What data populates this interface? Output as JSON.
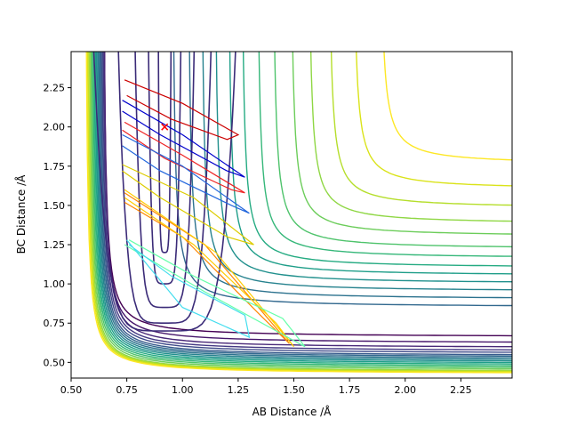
{
  "chart_data": {
    "type": "contour",
    "title": "",
    "xlabel": "AB Distance /Å",
    "ylabel": "BC Distance /Å",
    "xlim": [
      0.5,
      2.48
    ],
    "ylim": [
      0.4,
      2.48
    ],
    "xticks": [
      0.5,
      0.75,
      1.0,
      1.25,
      1.5,
      1.75,
      2.0,
      2.25
    ],
    "xtick_labels": [
      "0.50",
      "0.75",
      "1.00",
      "1.25",
      "1.50",
      "1.75",
      "2.00",
      "2.25"
    ],
    "yticks": [
      0.5,
      0.75,
      1.0,
      1.25,
      1.5,
      1.75,
      2.0,
      2.25
    ],
    "ytick_labels": [
      "0.50",
      "0.75",
      "1.00",
      "1.25",
      "1.50",
      "1.75",
      "2.00",
      "2.25"
    ],
    "grid": false,
    "legend": "none",
    "colormap": "viridis",
    "contour_levels": [
      {
        "x0": 0.64,
        "y0": 0.66,
        "color": "#440154"
      },
      {
        "x0": 0.64,
        "y0": 0.62,
        "color": "#46166b"
      },
      {
        "x0": 0.64,
        "y0": 0.59,
        "color": "#482878"
      },
      {
        "x0": 0.635,
        "y0": 0.57,
        "color": "#443983"
      },
      {
        "x0": 0.63,
        "y0": 0.555,
        "color": "#3e4a89"
      },
      {
        "x0": 0.625,
        "y0": 0.54,
        "color": "#375a8c"
      },
      {
        "x0": 0.62,
        "y0": 0.53,
        "color": "#31688e"
      },
      {
        "x0": 0.615,
        "y0": 0.52,
        "color": "#2c728e"
      },
      {
        "x0": 0.61,
        "y0": 0.51,
        "color": "#26828e"
      },
      {
        "x0": 0.605,
        "y0": 0.5,
        "color": "#21908d"
      },
      {
        "x0": 0.6,
        "y0": 0.49,
        "color": "#1f9e89"
      },
      {
        "x0": 0.595,
        "y0": 0.48,
        "color": "#25ab82"
      },
      {
        "x0": 0.59,
        "y0": 0.47,
        "color": "#35b779"
      },
      {
        "x0": 0.585,
        "y0": 0.46,
        "color": "#4ec36b"
      },
      {
        "x0": 0.58,
        "y0": 0.45,
        "color": "#6ccd5a"
      },
      {
        "x0": 0.575,
        "y0": 0.44,
        "color": "#8fd744"
      },
      {
        "x0": 0.57,
        "y0": 0.435,
        "color": "#b5de2b"
      },
      {
        "x0": 0.565,
        "y0": 0.43,
        "color": "#dae319"
      },
      {
        "x0": 0.56,
        "y0": 0.425,
        "color": "#fde725"
      }
    ],
    "upper_right_contours": [
      {
        "x0": 0.95,
        "y0": 0.85,
        "color": "#31688e"
      },
      {
        "x0": 1.02,
        "y0": 0.9,
        "color": "#2c728e"
      },
      {
        "x0": 1.08,
        "y0": 0.95,
        "color": "#26828e"
      },
      {
        "x0": 1.14,
        "y0": 1.0,
        "color": "#21908d"
      },
      {
        "x0": 1.2,
        "y0": 1.05,
        "color": "#1f9e89"
      },
      {
        "x0": 1.26,
        "y0": 1.1,
        "color": "#25ab82"
      },
      {
        "x0": 1.33,
        "y0": 1.16,
        "color": "#35b779"
      },
      {
        "x0": 1.4,
        "y0": 1.22,
        "color": "#4ec36b"
      },
      {
        "x0": 1.48,
        "y0": 1.3,
        "color": "#6ccd5a"
      },
      {
        "x0": 1.56,
        "y0": 1.38,
        "color": "#8fd744"
      },
      {
        "x0": 1.65,
        "y0": 1.48,
        "color": "#b5de2b"
      },
      {
        "x0": 1.76,
        "y0": 1.6,
        "color": "#dae319"
      },
      {
        "x0": 1.88,
        "y0": 1.76,
        "color": "#fde725"
      }
    ],
    "reactant_well": {
      "x_center": 0.92,
      "color": "#440154"
    },
    "start_point": {
      "x": 0.92,
      "y": 2.0,
      "marker": "x",
      "color": "#ff0000"
    },
    "trajectories": [
      {
        "color": "#cc0000",
        "points": [
          [
            0.74,
            2.3
          ],
          [
            1.0,
            2.15
          ],
          [
            1.25,
            1.95
          ],
          [
            1.2,
            1.92
          ],
          [
            0.95,
            2.05
          ],
          [
            0.75,
            2.2
          ]
        ]
      },
      {
        "color": "#ee2222",
        "points": [
          [
            0.74,
            2.03
          ],
          [
            1.0,
            1.82
          ],
          [
            1.28,
            1.58
          ],
          [
            1.22,
            1.6
          ],
          [
            0.92,
            1.8
          ],
          [
            0.73,
            1.98
          ]
        ]
      },
      {
        "color": "#0000cc",
        "points": [
          [
            0.73,
            2.17
          ],
          [
            1.0,
            1.95
          ],
          [
            1.28,
            1.68
          ],
          [
            1.2,
            1.72
          ],
          [
            0.9,
            1.95
          ],
          [
            0.73,
            2.1
          ]
        ]
      },
      {
        "color": "#2266dd",
        "points": [
          [
            0.73,
            1.95
          ],
          [
            1.0,
            1.75
          ],
          [
            1.3,
            1.45
          ],
          [
            1.22,
            1.5
          ],
          [
            0.9,
            1.72
          ],
          [
            0.73,
            1.88
          ]
        ]
      },
      {
        "color": "#ddcc00",
        "points": [
          [
            0.73,
            1.76
          ],
          [
            1.05,
            1.55
          ],
          [
            1.32,
            1.25
          ],
          [
            1.2,
            1.3
          ],
          [
            0.9,
            1.55
          ],
          [
            0.73,
            1.72
          ]
        ]
      },
      {
        "color": "#ff8800",
        "points": [
          [
            0.74,
            1.58
          ],
          [
            1.1,
            1.25
          ],
          [
            1.48,
            0.62
          ],
          [
            1.35,
            0.8
          ],
          [
            1.0,
            1.3
          ],
          [
            0.74,
            1.52
          ]
        ]
      },
      {
        "color": "#ffcc00",
        "points": [
          [
            0.74,
            1.6
          ],
          [
            1.15,
            1.2
          ],
          [
            1.5,
            0.6
          ],
          [
            1.42,
            0.75
          ],
          [
            1.05,
            1.25
          ],
          [
            0.74,
            1.55
          ]
        ]
      },
      {
        "color": "#66ffaa",
        "points": [
          [
            0.74,
            1.25
          ],
          [
            1.1,
            0.95
          ],
          [
            1.55,
            0.6
          ],
          [
            1.45,
            0.78
          ],
          [
            1.05,
            1.05
          ],
          [
            0.76,
            1.28
          ]
        ]
      },
      {
        "color": "#44ddee",
        "points": [
          [
            0.75,
            1.28
          ],
          [
            1.0,
            0.85
          ],
          [
            1.3,
            0.66
          ],
          [
            1.28,
            0.8
          ],
          [
            0.95,
            1.05
          ],
          [
            0.76,
            1.25
          ]
        ]
      }
    ]
  }
}
